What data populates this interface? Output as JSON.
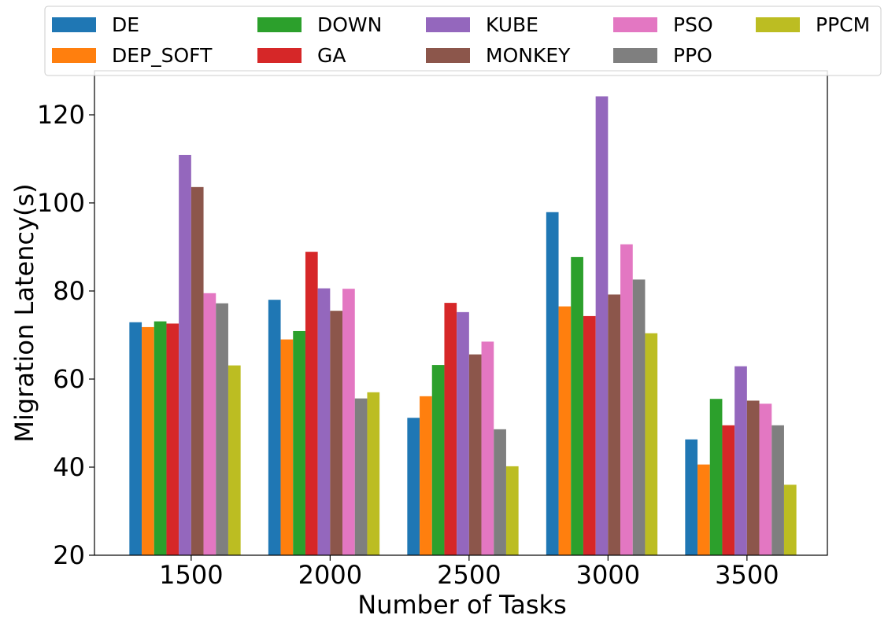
{
  "chart_data": {
    "type": "bar",
    "title": "",
    "xlabel": "Number of Tasks",
    "ylabel": "Migration Latency(s)",
    "ylim": [
      20,
      130
    ],
    "yticks": [
      20,
      40,
      60,
      80,
      100,
      120
    ],
    "categories": [
      "1500",
      "2000",
      "2500",
      "3000",
      "3500"
    ],
    "legend_position": "top",
    "grid": false,
    "series": [
      {
        "name": "DE",
        "color": "#1f77b4",
        "values": [
          72.9,
          78.0,
          51.2,
          97.9,
          46.3
        ]
      },
      {
        "name": "DEP_SOFT",
        "color": "#ff7f0e",
        "values": [
          71.8,
          69.0,
          56.1,
          76.5,
          40.6
        ]
      },
      {
        "name": "DOWN",
        "color": "#2ca02c",
        "values": [
          73.1,
          70.9,
          63.2,
          87.7,
          55.5
        ]
      },
      {
        "name": "GA",
        "color": "#d62728",
        "values": [
          72.6,
          88.9,
          77.3,
          74.3,
          49.5
        ]
      },
      {
        "name": "KUBE",
        "color": "#9467bd",
        "values": [
          110.9,
          80.6,
          75.2,
          124.2,
          62.9
        ]
      },
      {
        "name": "MONKEY",
        "color": "#8c564b",
        "values": [
          103.6,
          75.5,
          65.6,
          79.2,
          55.1
        ]
      },
      {
        "name": "PSO",
        "color": "#e377c2",
        "values": [
          79.5,
          80.5,
          68.5,
          90.6,
          54.4
        ]
      },
      {
        "name": "PPO",
        "color": "#7f7f7f",
        "values": [
          77.2,
          55.6,
          48.6,
          82.6,
          49.5
        ]
      },
      {
        "name": "PPCM",
        "color": "#bcbd22",
        "values": [
          63.1,
          57.0,
          40.2,
          70.4,
          36.0
        ]
      }
    ]
  }
}
